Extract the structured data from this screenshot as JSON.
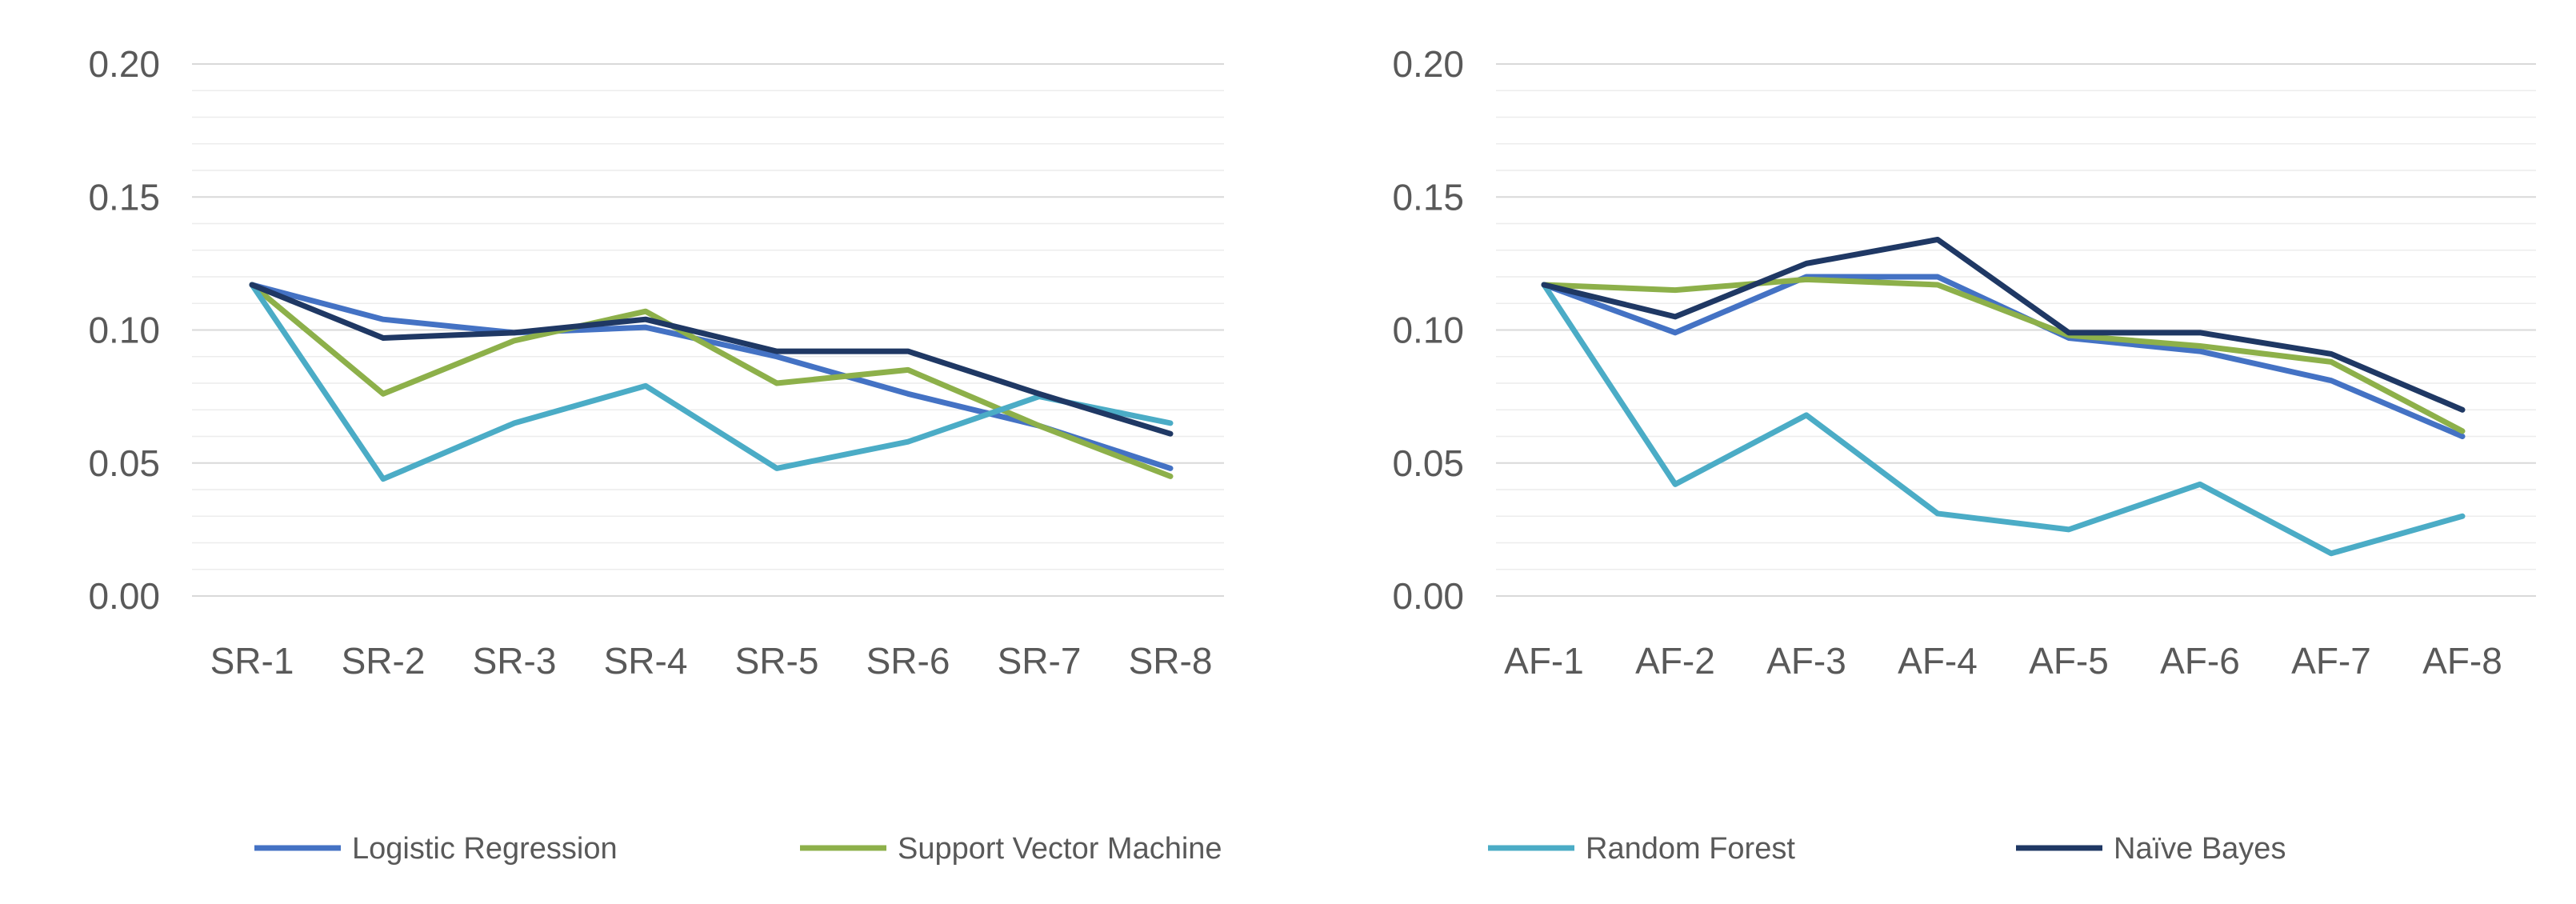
{
  "chart_data": [
    {
      "type": "line",
      "panel": "left",
      "title": "",
      "xlabel": "",
      "ylabel": "",
      "categories": [
        "SR-1",
        "SR-2",
        "SR-3",
        "SR-4",
        "SR-5",
        "SR-6",
        "SR-7",
        "SR-8"
      ],
      "ylim": [
        0,
        0.2
      ],
      "yticks": [
        "0.00",
        "0.05",
        "0.10",
        "0.15",
        "0.20"
      ],
      "grid": true,
      "series": [
        {
          "name": "Logistic Regression",
          "color": "#4472C4",
          "values": [
            0.117,
            0.104,
            0.099,
            0.101,
            0.09,
            0.076,
            0.064,
            0.048
          ]
        },
        {
          "name": "Support Vector Machine",
          "color": "#8DB04A",
          "values": [
            0.117,
            0.076,
            0.096,
            0.107,
            0.08,
            0.085,
            0.064,
            0.045
          ]
        },
        {
          "name": "Random Forest",
          "color": "#4BACC6",
          "values": [
            0.117,
            0.044,
            0.065,
            0.079,
            0.048,
            0.058,
            0.075,
            0.065
          ]
        },
        {
          "name": "Naïve Bayes",
          "color": "#1F3864",
          "values": [
            0.117,
            0.097,
            0.099,
            0.104,
            0.092,
            0.092,
            0.076,
            0.061
          ]
        }
      ]
    },
    {
      "type": "line",
      "panel": "right",
      "title": "",
      "xlabel": "",
      "ylabel": "",
      "categories": [
        "AF-1",
        "AF-2",
        "AF-3",
        "AF-4",
        "AF-5",
        "AF-6",
        "AF-7",
        "AF-8"
      ],
      "ylim": [
        0,
        0.2
      ],
      "yticks": [
        "0.00",
        "0.05",
        "0.10",
        "0.15",
        "0.20"
      ],
      "grid": true,
      "series": [
        {
          "name": "Logistic Regression",
          "color": "#4472C4",
          "values": [
            0.117,
            0.099,
            0.12,
            0.12,
            0.097,
            0.092,
            0.081,
            0.06
          ]
        },
        {
          "name": "Support Vector Machine",
          "color": "#8DB04A",
          "values": [
            0.117,
            0.115,
            0.119,
            0.117,
            0.098,
            0.094,
            0.088,
            0.062
          ]
        },
        {
          "name": "Random Forest",
          "color": "#4BACC6",
          "values": [
            0.117,
            0.042,
            0.068,
            0.031,
            0.025,
            0.042,
            0.016,
            0.03
          ]
        },
        {
          "name": "Naïve Bayes",
          "color": "#1F3864",
          "values": [
            0.117,
            0.105,
            0.125,
            0.134,
            0.099,
            0.099,
            0.091,
            0.07
          ]
        }
      ]
    }
  ],
  "legend": {
    "position": "bottom",
    "entries": [
      {
        "label": "Logistic Regression",
        "color": "#4472C4"
      },
      {
        "label": "Support Vector Machine",
        "color": "#8DB04A"
      },
      {
        "label": "Random Forest",
        "color": "#4BACC6"
      },
      {
        "label": "Naïve Bayes",
        "color": "#1F3864"
      }
    ]
  }
}
